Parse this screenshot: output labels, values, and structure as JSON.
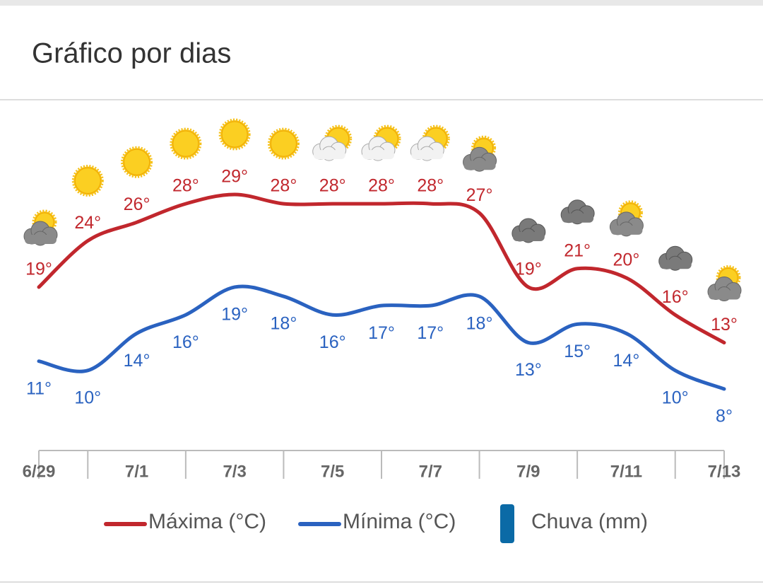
{
  "chart_data": {
    "type": "line",
    "title": "Gráfico por dias",
    "categories": [
      "6/29",
      null,
      "7/1",
      null,
      "7/3",
      null,
      "7/5",
      null,
      "7/7",
      null,
      "7/9",
      null,
      "7/11",
      null,
      "7/13"
    ],
    "series": [
      {
        "name": "Máxima (°C)",
        "color": "#c1272d",
        "values": [
          19,
          24,
          26,
          28,
          29,
          28,
          28,
          28,
          28,
          27,
          19,
          21,
          20,
          16,
          13
        ],
        "value_labels": [
          "19°",
          "24°",
          "26°",
          "28°",
          "29°",
          "28°",
          "28°",
          "28°",
          "28°",
          "27°",
          "19°",
          "21°",
          "20°",
          "16°",
          "13°"
        ]
      },
      {
        "name": "Mínima (°C)",
        "color": "#2a62c0",
        "values": [
          11,
          10,
          14,
          16,
          19,
          18,
          16,
          17,
          17,
          18,
          13,
          15,
          14,
          10,
          8
        ],
        "value_labels": [
          "11°",
          "10°",
          "14°",
          "16°",
          "19°",
          "18°",
          "16°",
          "17°",
          "17°",
          "18°",
          "13°",
          "15°",
          "14°",
          "10°",
          "8°"
        ]
      }
    ],
    "rain": {
      "name": "Chuva (mm)",
      "color": "#0b6aa6"
    },
    "conditions": [
      "partly-cloudy",
      "sunny",
      "sunny",
      "sunny",
      "sunny",
      "sunny",
      "partly-sunny",
      "partly-sunny",
      "partly-sunny",
      "partly-cloudy",
      "cloudy",
      "cloudy",
      "partly-cloudy",
      "cloudy",
      "partly-cloudy"
    ]
  }
}
